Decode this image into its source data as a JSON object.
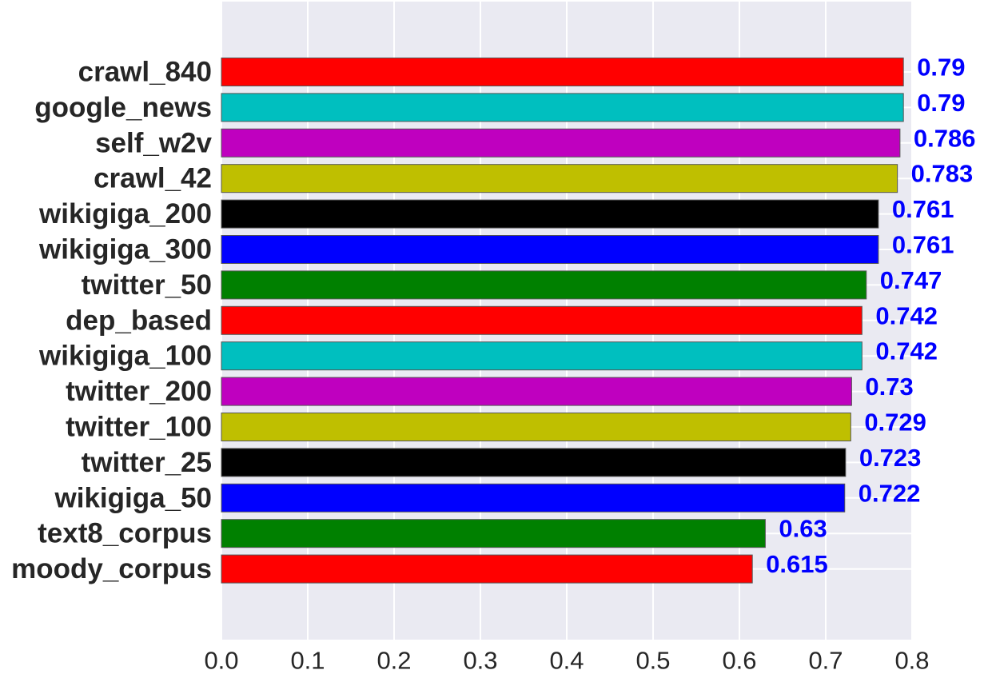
{
  "chart_data": {
    "type": "bar",
    "orientation": "horizontal",
    "title": "",
    "xlabel": "",
    "ylabel": "",
    "categories": [
      "crawl_840",
      "google_news",
      "self_w2v",
      "crawl_42",
      "wikigiga_200",
      "wikigiga_300",
      "twitter_50",
      "dep_based",
      "wikigiga_100",
      "twitter_200",
      "twitter_100",
      "twitter_25",
      "wikigiga_50",
      "text8_corpus",
      "moody_corpus"
    ],
    "values": [
      0.79,
      0.79,
      0.786,
      0.783,
      0.761,
      0.761,
      0.747,
      0.742,
      0.742,
      0.73,
      0.729,
      0.723,
      0.722,
      0.63,
      0.615
    ],
    "value_labels": [
      "0.79",
      "0.79",
      "0.786",
      "0.783",
      "0.761",
      "0.761",
      "0.747",
      "0.742",
      "0.742",
      "0.73",
      "0.729",
      "0.723",
      "0.722",
      "0.63",
      "0.615"
    ],
    "bar_colors": [
      "#ff0000",
      "#00bfbf",
      "#bf00bf",
      "#bfbf00",
      "#000000",
      "#0000ff",
      "#008000",
      "#ff0000",
      "#00bfbf",
      "#bf00bf",
      "#bfbf00",
      "#000000",
      "#0000ff",
      "#008000",
      "#ff0000"
    ],
    "xlim": [
      0.0,
      0.8
    ],
    "xticks": [
      "0.0",
      "0.1",
      "0.2",
      "0.3",
      "0.4",
      "0.5",
      "0.6",
      "0.7",
      "0.8"
    ],
    "grid": true,
    "legend": "none",
    "colors": {
      "plot_background": "#eaeaf2",
      "grid": "#ffffff",
      "label_text": "#262626",
      "data_label": "#0000ff",
      "bar_edge": "#555555"
    }
  }
}
